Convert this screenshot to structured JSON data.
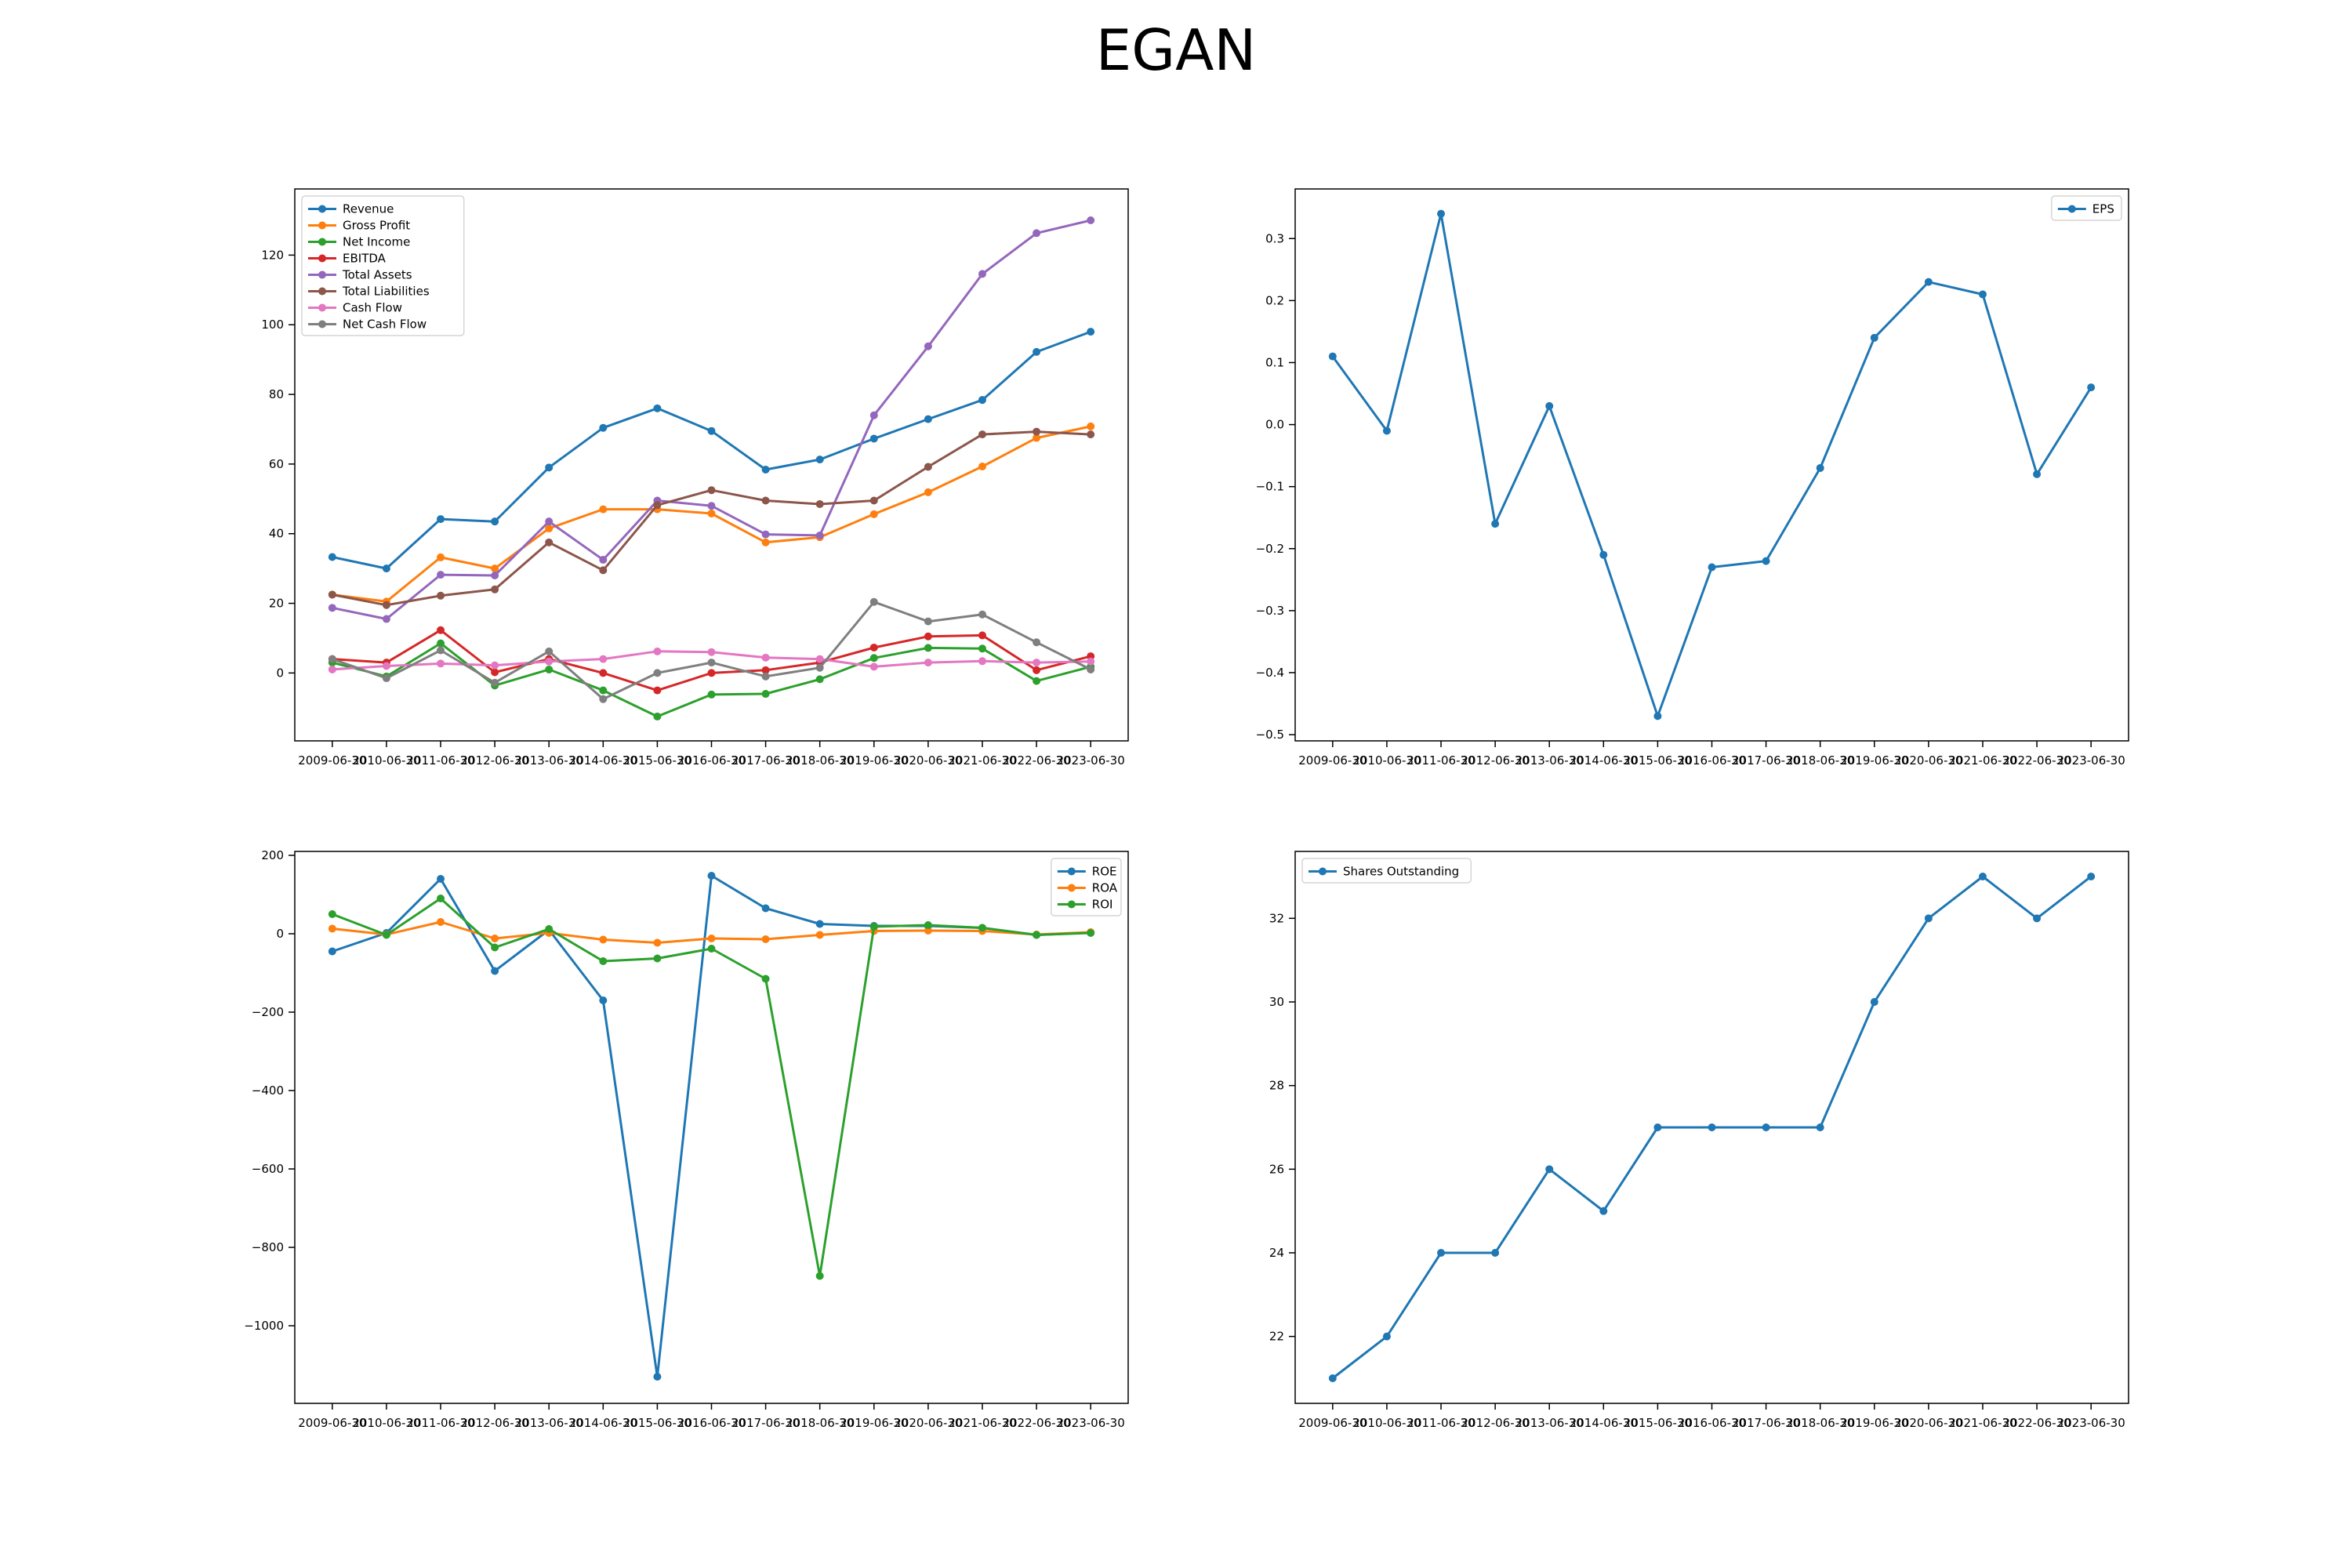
{
  "title": "EGAN",
  "chart_data": [
    {
      "type": "line",
      "title": "",
      "xlabel": "",
      "ylabel": "",
      "categories": [
        "2009-06-30",
        "2010-06-30",
        "2011-06-30",
        "2012-06-30",
        "2013-06-30",
        "2014-06-30",
        "2015-06-30",
        "2016-06-30",
        "2017-06-30",
        "2018-06-30",
        "2019-06-30",
        "2020-06-30",
        "2021-06-30",
        "2022-06-30",
        "2023-06-30"
      ],
      "ylim": [
        -19.5,
        139
      ],
      "yticks": [
        0,
        20,
        40,
        60,
        80,
        100,
        120
      ],
      "legend": "top-left",
      "grid": false,
      "series": [
        {
          "name": "Revenue",
          "color": "#1f77b4",
          "values": [
            33.3,
            30,
            44.2,
            43.5,
            59,
            70.4,
            76,
            69.5,
            58.4,
            61.3,
            67.3,
            72.9,
            78.4,
            92.2,
            98
          ]
        },
        {
          "name": "Gross Profit",
          "color": "#ff7f0e",
          "values": [
            22.5,
            20.5,
            33.2,
            30,
            41.5,
            47,
            47,
            45.8,
            37.5,
            39,
            45.6,
            51.9,
            59.3,
            67.5,
            70.8
          ]
        },
        {
          "name": "Net Income",
          "color": "#2ca02c",
          "values": [
            3,
            -1,
            8.5,
            -3.6,
            1,
            -5,
            -12.5,
            -6.2,
            -6,
            -1.8,
            4.3,
            7.2,
            7,
            -2.3,
            1.8
          ]
        },
        {
          "name": "EBITDA",
          "color": "#d62728",
          "values": [
            4,
            3,
            12.3,
            0.2,
            4,
            0,
            -5,
            0,
            0.8,
            3,
            7.3,
            10.5,
            10.8,
            0.8,
            4.8
          ]
        },
        {
          "name": "Total Assets",
          "color": "#9467bd",
          "values": [
            18.7,
            15.5,
            28.2,
            28,
            43.5,
            32.5,
            49.5,
            48,
            39.8,
            39.5,
            74,
            93.8,
            114.6,
            126.3,
            130
          ]
        },
        {
          "name": "Total Liabilities",
          "color": "#8c564b",
          "values": [
            22.5,
            19.5,
            22.2,
            24,
            37.5,
            29.5,
            48.2,
            52.5,
            49.5,
            48.5,
            49.5,
            59.2,
            68.5,
            69.3,
            68.5
          ]
        },
        {
          "name": "Cash Flow",
          "color": "#e377c2",
          "values": [
            1,
            2,
            2.7,
            2.2,
            3.3,
            4,
            6.2,
            6,
            4.4,
            4,
            1.8,
            3,
            3.4,
            3,
            3.3
          ]
        },
        {
          "name": "Net Cash Flow",
          "color": "#7f7f7f",
          "values": [
            4,
            -1.5,
            6.5,
            -2.8,
            6.2,
            -7.5,
            0,
            3,
            -1,
            1.5,
            20.4,
            14.8,
            16.8,
            8.8,
            1
          ]
        }
      ]
    },
    {
      "type": "line",
      "title": "",
      "xlabel": "",
      "ylabel": "",
      "categories": [
        "2009-06-30",
        "2010-06-30",
        "2011-06-30",
        "2012-06-30",
        "2013-06-30",
        "2014-06-30",
        "2015-06-30",
        "2016-06-30",
        "2017-06-30",
        "2018-06-30",
        "2019-06-30",
        "2020-06-30",
        "2021-06-30",
        "2022-06-30",
        "2023-06-30"
      ],
      "ylim": [
        -0.51,
        0.38
      ],
      "yticks": [
        -0.5,
        -0.4,
        -0.3,
        -0.2,
        -0.1,
        0.0,
        0.1,
        0.2,
        0.3
      ],
      "ytick_labels": [
        "−0.5",
        "−0.4",
        "−0.3",
        "−0.2",
        "−0.1",
        "0.0",
        "0.1",
        "0.2",
        "0.3"
      ],
      "legend": "top-right",
      "grid": false,
      "series": [
        {
          "name": "EPS",
          "color": "#1f77b4",
          "values": [
            0.11,
            -0.01,
            0.34,
            -0.16,
            0.03,
            -0.21,
            -0.47,
            -0.23,
            -0.22,
            -0.07,
            0.14,
            0.23,
            0.21,
            -0.08,
            0.06
          ]
        }
      ]
    },
    {
      "type": "line",
      "title": "",
      "xlabel": "",
      "ylabel": "",
      "categories": [
        "2009-06-30",
        "2010-06-30",
        "2011-06-30",
        "2012-06-30",
        "2013-06-30",
        "2014-06-30",
        "2015-06-30",
        "2016-06-30",
        "2017-06-30",
        "2018-06-30",
        "2019-06-30",
        "2020-06-30",
        "2021-06-30",
        "2022-06-30",
        "2023-06-30"
      ],
      "ylim": [
        -1198,
        210
      ],
      "yticks": [
        -1000,
        -800,
        -600,
        -400,
        -200,
        0,
        200
      ],
      "ytick_labels": [
        "−1000",
        "−800",
        "−600",
        "−400",
        "−200",
        "0",
        "200"
      ],
      "legend": "top-right",
      "grid": false,
      "series": [
        {
          "name": "ROE",
          "color": "#1f77b4",
          "values": [
            -45,
            2,
            140,
            -95,
            10,
            -170,
            -1130,
            148,
            65,
            25,
            20,
            20,
            15,
            -3,
            3
          ]
        },
        {
          "name": "ROA",
          "color": "#ff7f0e",
          "values": [
            13,
            -2,
            30,
            -12,
            2,
            -15,
            -23,
            -12,
            -14,
            -3,
            7,
            8,
            7,
            -2,
            4
          ]
        },
        {
          "name": "ROI",
          "color": "#2ca02c",
          "values": [
            50,
            -3,
            90,
            -35,
            12,
            -70,
            -63,
            -38,
            -115,
            -873,
            18,
            22,
            15,
            -3,
            2
          ]
        }
      ]
    },
    {
      "type": "line",
      "title": "",
      "xlabel": "",
      "ylabel": "",
      "categories": [
        "2009-06-30",
        "2010-06-30",
        "2011-06-30",
        "2012-06-30",
        "2013-06-30",
        "2014-06-30",
        "2015-06-30",
        "2016-06-30",
        "2017-06-30",
        "2018-06-30",
        "2019-06-30",
        "2020-06-30",
        "2021-06-30",
        "2022-06-30",
        "2023-06-30"
      ],
      "ylim": [
        20.4,
        33.6
      ],
      "yticks": [
        22,
        24,
        26,
        28,
        30,
        32
      ],
      "legend": "top-left",
      "grid": false,
      "series": [
        {
          "name": "Shares Outstanding",
          "color": "#1f77b4",
          "values": [
            21,
            22,
            24,
            24,
            26,
            25,
            27,
            27,
            27,
            27,
            30,
            32,
            33,
            32,
            33
          ]
        }
      ]
    }
  ]
}
